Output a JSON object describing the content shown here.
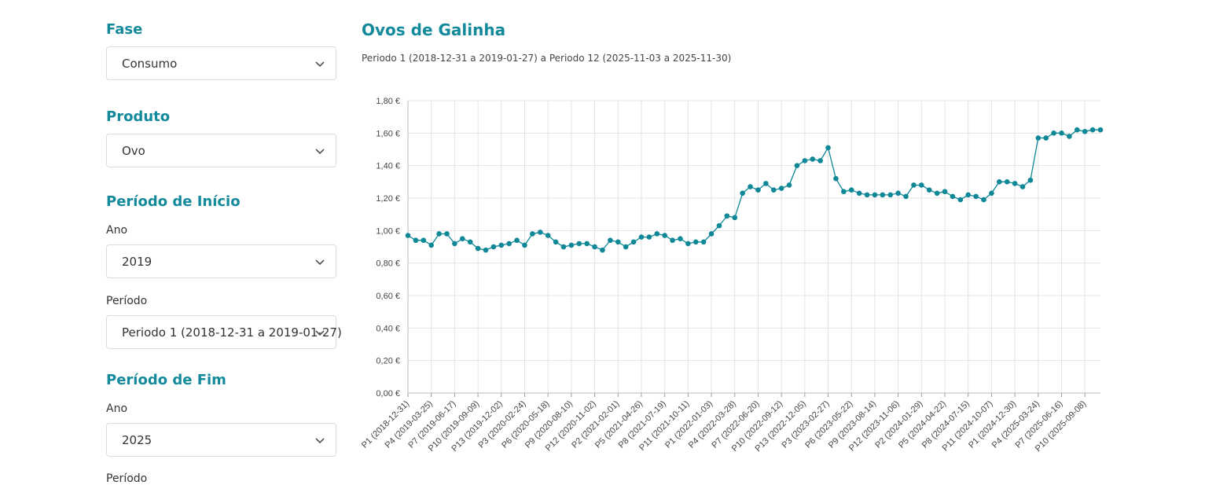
{
  "filters": {
    "fase": {
      "title": "Fase",
      "value": "Consumo"
    },
    "produto": {
      "title": "Produto",
      "value": "Ovo"
    },
    "inicio": {
      "title": "Período de Início",
      "ano_label": "Ano",
      "ano_value": "2019",
      "periodo_label": "Período",
      "periodo_value": "Periodo 1 (2018-12-31 a 2019-01-27)"
    },
    "fim": {
      "title": "Período de Fim",
      "ano_label": "Ano",
      "ano_value": "2025",
      "periodo_label": "Período"
    }
  },
  "chart": {
    "title": "Ovos de Galinha",
    "subtitle": "Periodo 1 (2018-12-31 a 2019-01-27) a Periodo 12 (2025-11-03 a 2025-11-30)"
  },
  "colors": {
    "accent": "#138a9b",
    "line": "#0e8797",
    "grid": "#e3e3e3"
  },
  "chart_data": {
    "type": "line",
    "title": "Ovos de Galinha",
    "xlabel": "",
    "ylabel": "",
    "ylim": [
      0,
      1.8
    ],
    "yticks": [
      0,
      0.2,
      0.4,
      0.6,
      0.8,
      1.0,
      1.2,
      1.4,
      1.6,
      1.8
    ],
    "ytick_labels": [
      "0,00 €",
      "0,20 €",
      "0,40 €",
      "0,60 €",
      "0,80 €",
      "1,00 €",
      "1,20 €",
      "1,40 €",
      "1,60 €",
      "1,80 €"
    ],
    "xtick_every": 3,
    "xtick_labels": [
      "P1 (2018-12-31)",
      "P4 (2019-03-25)",
      "P7 (2019-06-17)",
      "P10 (2019-09-09)",
      "P13 (2019-12-02)",
      "P3 (2020-02-24)",
      "P6 (2020-05-18)",
      "P9 (2020-08-10)",
      "P12 (2020-11-02)",
      "P2 (2021-02-01)",
      "P5 (2021-04-26)",
      "P8 (2021-07-19)",
      "P11 (2021-10-11)",
      "P1 (2022-01-03)",
      "P4 (2022-03-28)",
      "P7 (2022-06-20)",
      "P10 (2022-09-12)",
      "P13 (2022-12-05)",
      "P3 (2023-02-27)",
      "P6 (2023-05-22)",
      "P9 (2023-08-14)",
      "P12 (2023-11-06)",
      "P2 (2024-01-29)",
      "P5 (2024-04-22)",
      "P8 (2024-07-15)",
      "P11 (2024-10-07)",
      "P1 (2024-12-30)",
      "P4 (2025-03-24)",
      "P7 (2025-06-16)",
      "P10 (2025-09-08)"
    ],
    "series": [
      {
        "name": "Ovos de Galinha",
        "values": [
          0.97,
          0.94,
          0.94,
          0.91,
          0.98,
          0.98,
          0.92,
          0.95,
          0.93,
          0.89,
          0.88,
          0.9,
          0.91,
          0.92,
          0.94,
          0.91,
          0.98,
          0.99,
          0.97,
          0.93,
          0.9,
          0.91,
          0.92,
          0.92,
          0.9,
          0.88,
          0.94,
          0.93,
          0.9,
          0.93,
          0.96,
          0.96,
          0.98,
          0.97,
          0.94,
          0.95,
          0.92,
          0.93,
          0.93,
          0.98,
          1.03,
          1.09,
          1.08,
          1.23,
          1.27,
          1.25,
          1.29,
          1.25,
          1.26,
          1.28,
          1.4,
          1.43,
          1.44,
          1.43,
          1.51,
          1.32,
          1.24,
          1.25,
          1.23,
          1.22,
          1.22,
          1.22,
          1.22,
          1.23,
          1.21,
          1.28,
          1.28,
          1.25,
          1.23,
          1.24,
          1.21,
          1.19,
          1.22,
          1.21,
          1.19,
          1.23,
          1.3,
          1.3,
          1.29,
          1.27,
          1.31,
          1.57,
          1.57,
          1.6,
          1.6,
          1.58,
          1.62,
          1.61,
          1.62,
          1.62
        ]
      }
    ]
  }
}
